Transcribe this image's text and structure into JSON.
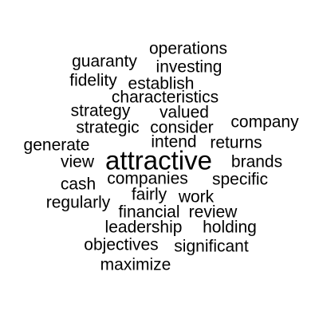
{
  "cloud": {
    "text_color": "#000000",
    "background_color": "#ffffff",
    "words": [
      {
        "text": "operations"
      },
      {
        "text": "guaranty"
      },
      {
        "text": "investing"
      },
      {
        "text": "fidelity"
      },
      {
        "text": "establish"
      },
      {
        "text": "characteristics"
      },
      {
        "text": "strategy"
      },
      {
        "text": "valued"
      },
      {
        "text": "company"
      },
      {
        "text": "strategic"
      },
      {
        "text": "consider"
      },
      {
        "text": "generate"
      },
      {
        "text": "intend"
      },
      {
        "text": "returns"
      },
      {
        "text": "view"
      },
      {
        "text": "attractive"
      },
      {
        "text": "brands"
      },
      {
        "text": "companies"
      },
      {
        "text": "specific"
      },
      {
        "text": "cash"
      },
      {
        "text": "fairly"
      },
      {
        "text": "regularly"
      },
      {
        "text": "work"
      },
      {
        "text": "financial"
      },
      {
        "text": "review"
      },
      {
        "text": "leadership"
      },
      {
        "text": "holding"
      },
      {
        "text": "objectives"
      },
      {
        "text": "significant"
      },
      {
        "text": "maximize"
      }
    ]
  }
}
